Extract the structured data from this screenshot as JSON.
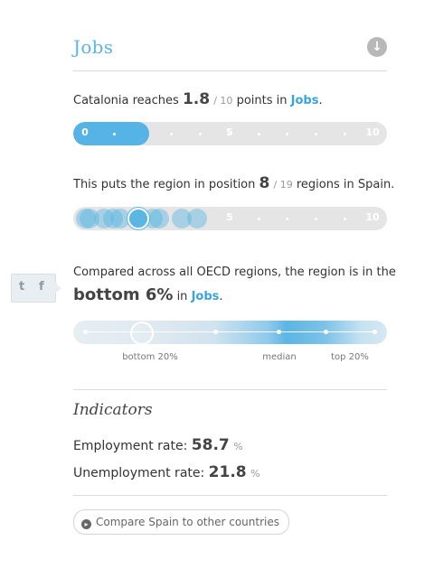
{
  "header": {
    "title": "Jobs"
  },
  "score": {
    "prefix": "Catalonia reaches",
    "value": "1.8",
    "sep": "/ 10",
    "middle": "points in",
    "topic": "Jobs",
    "period": ".",
    "fraction": 0.18,
    "ticks": {
      "min": "0",
      "mid": "5",
      "max": "10"
    }
  },
  "position": {
    "prefix": "This puts the region in position",
    "value": "8",
    "sep": "/ 19",
    "suffix": "regions in Spain.",
    "ticks": {
      "mid": "5",
      "max": "10"
    }
  },
  "oecd": {
    "line1": "Compared across all OECD regions, the region is in the",
    "big": "bottom 6%",
    "middle": "in",
    "topic": "Jobs",
    "period": ".",
    "percentile": 0.06,
    "labels": {
      "bottom": "bottom 20%",
      "median": "median",
      "top": "top 20%"
    }
  },
  "share": {
    "twitter": "t",
    "facebook": "f"
  },
  "indicators": {
    "title": "Indicators",
    "employment": {
      "label": "Employment rate:",
      "value": "58.7",
      "unit": "%"
    },
    "unemployment": {
      "label": "Unemployment rate:",
      "value": "21.8",
      "unit": "%"
    }
  },
  "compare": {
    "label": "Compare Spain to other countries"
  },
  "colors": {
    "accent": "#5bb6e3",
    "track": "#e5e5e5"
  }
}
